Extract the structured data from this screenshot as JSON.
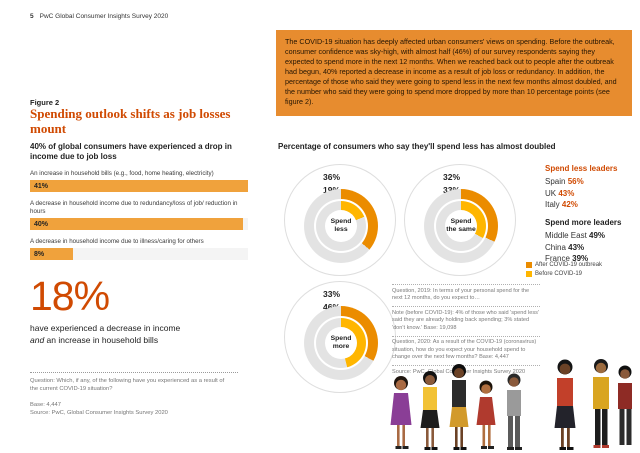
{
  "page": {
    "page_number": "5",
    "header_title": "PwC Global Consumer Insights Survey 2020"
  },
  "intro": {
    "text": "The COVID-19 situation has deeply affected urban consumers' views on spending. Before the outbreak, consumer confidence was sky-high, with almost half (46%) of our survey respondents saying they expected to spend more in the next 12 months. When we reached back out to people after the outbreak had begun, 40% reported a decrease in income as a result of job loss or redundancy. In addition, the percentage of those who said they were going to spend less in the next few months almost doubled, and the number who said they were going to spend more dropped by more than 10 percentage points (see figure 2)."
  },
  "figure2": {
    "label": "Figure 2",
    "title": "Spending outlook shifts as job losses mount"
  },
  "income_section": {
    "headline": "40% of global consumers have experienced a drop in income due to job loss",
    "big_stat": "18%",
    "big_stat_line1": "have experienced a decrease in income",
    "big_stat_italic": "and",
    "big_stat_line2": " an increase in household bills",
    "question": "Question: Which, if any, of the following have you experienced as a result of the current COVID-19 situation?",
    "base": "Base: 4,447",
    "source": "Source: PwC, Global Consumer Insights Survey 2020"
  },
  "spend_section": {
    "title": "Percentage of consumers who say they'll spend less has almost doubled",
    "leaders": {
      "spend_less_title": "Spend less leaders",
      "spend_less": [
        {
          "country": "Spain",
          "value": "56%"
        },
        {
          "country": "UK",
          "value": "43%"
        },
        {
          "country": "Italy",
          "value": "42%"
        }
      ],
      "spend_more_title": "Spend more leaders",
      "spend_more": [
        {
          "country": "Middle East",
          "value": "49%"
        },
        {
          "country": "China",
          "value": "43%"
        },
        {
          "country": "France",
          "value": "39%"
        }
      ]
    },
    "notes": [
      "Question, 2019: In terms of your personal spend for the next 12 months, do you expect to…",
      "Note (before COVID-19): 4% of those who said 'spend less' said they are already holding back spending; 3% stated 'don't know.' Base: 19,098",
      "Question, 2020: As a result of the COVID-19 (coronavirus) situation, how do you expect your household spend to change over the next few months? Base: 4,447",
      "Source: PwC, Global Consumer Insights Survey 2020"
    ]
  },
  "colors": {
    "accent_orange": "#D04A02",
    "intro_background": "#E78C2F",
    "bar_orange": "#F0A23C",
    "after_covid_orange": "#EB8C00",
    "before_covid_yellow": "#FFB600"
  },
  "chart_data": [
    {
      "type": "bar",
      "title": "40% of global consumers have experienced a drop in income due to job loss",
      "categories": [
        "An increase in household bills (e.g., food, home heating, electricity)",
        "A decrease in household income due to redundancy/loss of job/ reduction in hours",
        "A decrease in household income due to illness/caring for others"
      ],
      "values": [
        41,
        40,
        8
      ],
      "value_labels": [
        "41%",
        "40%",
        "8%"
      ],
      "xlim": [
        0,
        41
      ],
      "bar_color": "#F0A23C"
    },
    {
      "type": "donut",
      "title": "Percentage of consumers who say they'll spend less has almost doubled",
      "categories": [
        "Spend less",
        "Spend the same",
        "Spend more"
      ],
      "series": [
        {
          "name": "After COVID-19 outbreak",
          "color": "#EB8C00",
          "values": [
            36,
            32,
            33
          ]
        },
        {
          "name": "Before COVID-19",
          "color": "#FFB600",
          "values": [
            19,
            33,
            46
          ]
        }
      ],
      "after_labels": [
        "36%",
        "32%",
        "33%"
      ],
      "before_labels": [
        "19%",
        "33%",
        "46%"
      ],
      "legend_position": "right"
    }
  ]
}
